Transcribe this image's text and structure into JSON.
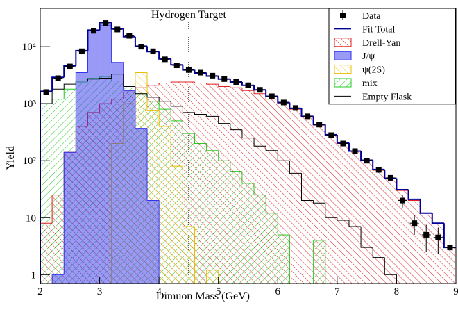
{
  "chart_data": {
    "type": "histogram",
    "title": "Hydrogen Target",
    "x_label": "Dimuon Mass (GeV)",
    "y_label": "Yield",
    "log_y": true,
    "legend": "top-right",
    "bins": [
      2.0,
      2.2,
      2.4,
      2.6,
      2.8,
      3.0,
      3.2,
      3.4,
      3.6,
      3.8,
      4.0,
      4.2,
      4.4,
      4.6,
      4.8,
      5.0,
      5.2,
      5.4,
      5.6,
      5.8,
      6.0,
      6.2,
      6.4,
      6.6,
      6.8,
      7.0,
      7.2,
      7.4,
      7.6,
      7.8,
      8.0,
      8.2,
      8.4,
      8.6,
      8.8,
      9.0
    ],
    "xlim": [
      2,
      9
    ],
    "xticks": [
      2,
      3,
      4,
      5,
      6,
      7,
      8,
      9
    ],
    "ylim": [
      0.7,
      47000
    ],
    "yticks": [
      1,
      10,
      {
        "value": 100,
        "label": "10²"
      },
      {
        "value": 1000,
        "label": "10³"
      },
      {
        "value": 10000,
        "label": "10⁴"
      }
    ],
    "annotation": {
      "text": "Hydrogen Target",
      "x": 4.5
    },
    "series": [
      {
        "name": "Data",
        "style": "points",
        "color": "#000000",
        "values": [
          1600,
          2800,
          4500,
          8300,
          19000,
          26000,
          20000,
          15500,
          10000,
          8300,
          6000,
          4700,
          3900,
          3500,
          3100,
          2700,
          2400,
          2100,
          1750,
          1350,
          1050,
          840,
          600,
          430,
          280,
          200,
          147,
          100,
          69,
          50,
          20,
          8,
          5,
          4.5,
          3
        ],
        "errors": [
          0,
          0,
          0,
          0,
          0,
          0,
          0,
          0,
          0,
          0,
          0,
          0,
          0,
          0,
          0,
          0,
          0,
          0,
          0,
          0,
          0,
          0,
          0,
          0,
          0,
          0,
          0,
          0,
          8,
          6,
          5,
          3,
          2.5,
          2.2,
          1.8
        ]
      },
      {
        "name": "Fit Total",
        "style": "line",
        "color": "#000099",
        "values": [
          1650,
          2900,
          4600,
          8500,
          19500,
          26500,
          20500,
          15000,
          10200,
          8200,
          6100,
          4800,
          3900,
          3450,
          3050,
          2700,
          2400,
          2100,
          1750,
          1350,
          1050,
          830,
          600,
          430,
          285,
          205,
          147,
          102,
          70,
          49,
          31,
          21,
          12,
          8,
          3
        ]
      },
      {
        "name": "Drell-Yan",
        "style": "hatch",
        "color": "#e02020",
        "values": [
          8,
          25,
          140,
          400,
          700,
          1000,
          1200,
          1600,
          1900,
          2100,
          2300,
          2400,
          2400,
          2300,
          2200,
          2000,
          1900,
          1700,
          1500,
          1200,
          1000,
          800,
          580,
          420,
          280,
          200,
          145,
          100,
          68,
          48,
          30,
          20,
          12,
          8,
          3
        ]
      },
      {
        "name": "J/ψ",
        "style": "fill",
        "color": "#3333ee",
        "values": [
          0,
          1,
          140,
          3500,
          19000,
          24000,
          5300,
          1700,
          370,
          20,
          0,
          0,
          0,
          0,
          0,
          0,
          0,
          0,
          0,
          0,
          0,
          0,
          0,
          0,
          0,
          0,
          0,
          0,
          0,
          0,
          0,
          0,
          0,
          0,
          0
        ]
      },
      {
        "name": "ψ(2S)",
        "style": "hatch",
        "color": "#e8c000",
        "values": [
          0,
          0,
          0,
          0,
          0,
          0,
          200,
          1000,
          3500,
          750,
          400,
          80,
          7,
          0,
          1.2,
          0,
          0,
          0,
          0,
          0,
          0,
          0,
          0,
          0,
          0,
          0,
          0,
          0,
          0,
          0,
          0,
          0,
          0,
          0,
          0
        ]
      },
      {
        "name": "mix",
        "style": "hatch",
        "color": "#22cc22",
        "values": [
          1000,
          1200,
          1800,
          2400,
          2800,
          3000,
          2500,
          2000,
          1500,
          1100,
          800,
          500,
          300,
          200,
          150,
          100,
          65,
          40,
          25,
          12,
          5,
          0,
          0,
          4,
          0,
          0,
          0,
          0,
          0,
          0,
          0,
          0,
          0,
          0,
          0
        ]
      },
      {
        "name": "Empty Flask",
        "style": "line",
        "color": "#000000",
        "values": [
          1000,
          1800,
          2200,
          2500,
          2700,
          2800,
          3300,
          2000,
          1500,
          1300,
          1100,
          900,
          700,
          650,
          600,
          450,
          350,
          250,
          180,
          150,
          100,
          60,
          20,
          18,
          10,
          9,
          7,
          3,
          2,
          1,
          0,
          0,
          0,
          0,
          0
        ]
      }
    ]
  }
}
